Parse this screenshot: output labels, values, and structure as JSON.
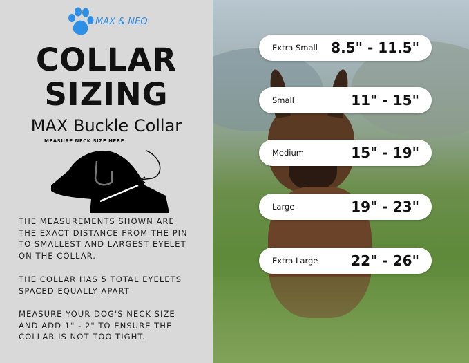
{
  "brand": {
    "name": "MAX & NEO",
    "logo_icon": "paw-icon",
    "color": "#2e8fe6"
  },
  "title": {
    "line1": "COLLAR",
    "line2": "SIZING",
    "subtitle": "MAX Buckle Collar"
  },
  "diagram": {
    "label": "MEASURE NECK SIZE HERE"
  },
  "notes": [
    [
      "THE MEASUREMENTS SHOWN ARE",
      "THE EXACT DISTANCE FROM THE PIN",
      "TO SMALLEST AND LARGEST EYELET",
      "ON THE COLLAR."
    ],
    [
      "THE COLLAR HAS 5 TOTAL EYELETS",
      "SPACED EQUALLY APART"
    ],
    [
      "MEASURE YOUR DOG'S NECK SIZE",
      "AND ADD 1\" - 2\" TO ENSURE THE",
      "COLLAR IS NOT TOO TIGHT."
    ]
  ],
  "sizes": [
    {
      "name": "Extra Small",
      "range": "8.5\" - 11.5\""
    },
    {
      "name": "Small",
      "range": "11\" - 15\""
    },
    {
      "name": "Medium",
      "range": "15\" - 19\""
    },
    {
      "name": "Large",
      "range": "19\" - 23\""
    },
    {
      "name": "Extra Large",
      "range": "22\" - 26\""
    }
  ]
}
